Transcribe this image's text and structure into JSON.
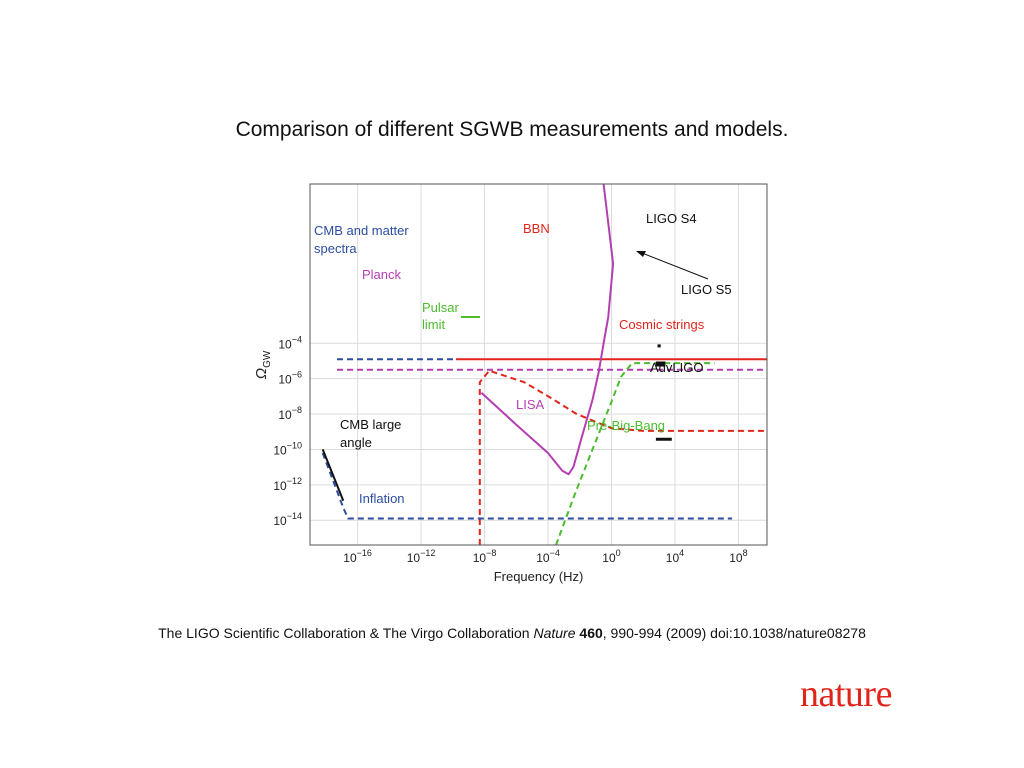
{
  "slide": {
    "title": "Comparison of different SGWB measurements and models.",
    "citation": {
      "authors": "The LIGO Scientific Collaboration & The Virgo Collaboration",
      "journal": "Nature",
      "volume": "460",
      "rest": ", 990-994 (2009) doi:10.1038/nature08278"
    },
    "logo": "nature"
  },
  "colors": {
    "red": "#e0251b",
    "blue": "#2b4ea2",
    "magenta": "#b43fb0",
    "green": "#4cbb2e",
    "black": "#111111",
    "grid": "#dcdcdc"
  },
  "chart_data": {
    "type": "line",
    "title": "",
    "xlabel": "Frequency (Hz)",
    "ylabel": "Ω_GW",
    "xscale": "log",
    "yscale": "log",
    "xlim_log10": [
      -19,
      9.8
    ],
    "ylim_log10": [
      -15.4,
      5
    ],
    "grid": true,
    "x_ticks": [
      {
        "exp": -16,
        "label": "10",
        "sup": "−16"
      },
      {
        "exp": -12,
        "label": "10",
        "sup": "−12"
      },
      {
        "exp": -8,
        "label": "10",
        "sup": "−8"
      },
      {
        "exp": -4,
        "label": "10",
        "sup": "−4"
      },
      {
        "exp": 0,
        "label": "10",
        "sup": "0"
      },
      {
        "exp": 4,
        "label": "10",
        "sup": "4"
      },
      {
        "exp": 8,
        "label": "10",
        "sup": "8"
      }
    ],
    "y_ticks": [
      {
        "exp": -4,
        "label": "10",
        "sup": "−4"
      },
      {
        "exp": -6,
        "label": "10",
        "sup": "−6"
      },
      {
        "exp": -8,
        "label": "10",
        "sup": "−8"
      },
      {
        "exp": -10,
        "label": "10",
        "sup": "−10"
      },
      {
        "exp": -12,
        "label": "10",
        "sup": "−12"
      },
      {
        "exp": -14,
        "label": "10",
        "sup": "−14"
      }
    ],
    "series": [
      {
        "name": "BBN",
        "color_key": "red",
        "style": "solid",
        "x_log10": [
          -9.8,
          9.8
        ],
        "y_log10": [
          -4.9,
          -4.9
        ]
      },
      {
        "name": "CMB and matter spectra",
        "color_key": "blue",
        "style": "dashed",
        "x_log10": [
          -17.3,
          -9.8
        ],
        "y_log10": [
          -4.9,
          -4.9
        ]
      },
      {
        "name": "Planck",
        "color_key": "magenta",
        "style": "dashed",
        "x_log10": [
          -17.3,
          9.8
        ],
        "y_log10": [
          -5.5,
          -5.5
        ]
      },
      {
        "name": "Cosmic strings",
        "color_key": "red",
        "style": "dashed",
        "x_log10": [
          -8.3,
          -8.3,
          -7.7,
          -5.5,
          -3.8,
          -2.2,
          0,
          2,
          9.8
        ],
        "y_log10": [
          -15.4,
          -6.2,
          -5.55,
          -6.2,
          -7.1,
          -8.0,
          -8.8,
          -8.95,
          -8.95
        ]
      },
      {
        "name": "LISA",
        "color_key": "magenta",
        "style": "solid",
        "x_log10": [
          -8.2,
          -6,
          -4,
          -3.1,
          -2.7,
          -2.4,
          -1.9,
          -1.2,
          -0.8,
          -0.5,
          -0.2,
          0.1,
          -0.5
        ],
        "y_log10": [
          -6.8,
          -8.6,
          -10.2,
          -11.2,
          -11.4,
          -11.0,
          -9.4,
          -7.2,
          -5.6,
          -4.0,
          -2.5,
          0.5,
          5.0
        ]
      },
      {
        "name": "Pre-Big-Bang",
        "color_key": "green",
        "style": "dashed",
        "x_log10": [
          -3.5,
          -2.3,
          -1.2,
          0,
          0.6,
          1.3,
          2,
          6.5
        ],
        "y_log10": [
          -15.4,
          -12.5,
          -10.0,
          -7.3,
          -5.9,
          -5.12,
          -5.12,
          -5.12
        ]
      },
      {
        "name": "Inflation",
        "color_key": "blue",
        "style": "dashed",
        "x_log10": [
          -18.2,
          -16.9,
          -16.6,
          7.6
        ],
        "y_log10": [
          -10.2,
          -13.3,
          -13.9,
          -13.9
        ]
      },
      {
        "name": "CMB large angle",
        "color_key": "black",
        "style": "solid",
        "x_log10": [
          -18.2,
          -16.9
        ],
        "y_log10": [
          -10.0,
          -12.9
        ]
      },
      {
        "name": "LIGO S4",
        "color_key": "black",
        "style": "solid",
        "x_log10": [
          2.9,
          3.1
        ],
        "y_log10": [
          -4.15,
          -4.15
        ]
      },
      {
        "name": "LIGO S5",
        "color_key": "black",
        "style": "solid",
        "x_log10": [
          2.8,
          3.4
        ],
        "y_log10": [
          -5.17,
          -5.17
        ]
      },
      {
        "name": "AdvLIGO",
        "color_key": "black",
        "style": "solid",
        "x_log10": [
          2.8,
          3.8
        ],
        "y_log10": [
          -9.42,
          -9.42
        ]
      }
    ],
    "annotations": [
      {
        "key": "bbn",
        "text": "BBN",
        "color_key": "red"
      },
      {
        "key": "cmb1",
        "text": "CMB and matter",
        "color_key": "blue"
      },
      {
        "key": "cmb2",
        "text": "spectra",
        "color_key": "blue"
      },
      {
        "key": "planck",
        "text": "Planck",
        "color_key": "magenta"
      },
      {
        "key": "pulsar1",
        "text": "Pulsar",
        "color_key": "green"
      },
      {
        "key": "pulsar2",
        "text": "limit",
        "color_key": "green"
      },
      {
        "key": "lisa",
        "text": "LISA",
        "color_key": "magenta"
      },
      {
        "key": "cosmic",
        "text": "Cosmic strings",
        "color_key": "red"
      },
      {
        "key": "prebb",
        "text": "Pre-Big-Bang",
        "color_key": "green"
      },
      {
        "key": "ligos4",
        "text": "LIGO S4",
        "color_key": "black"
      },
      {
        "key": "ligos5",
        "text": "LIGO S5",
        "color_key": "black"
      },
      {
        "key": "advligo",
        "text": "AdvLIGO",
        "color_key": "black"
      },
      {
        "key": "cmblarge1",
        "text": "CMB large",
        "color_key": "black"
      },
      {
        "key": "cmblarge2",
        "text": "angle",
        "color_key": "black"
      },
      {
        "key": "inflation",
        "text": "Inflation",
        "color_key": "blue"
      }
    ]
  }
}
